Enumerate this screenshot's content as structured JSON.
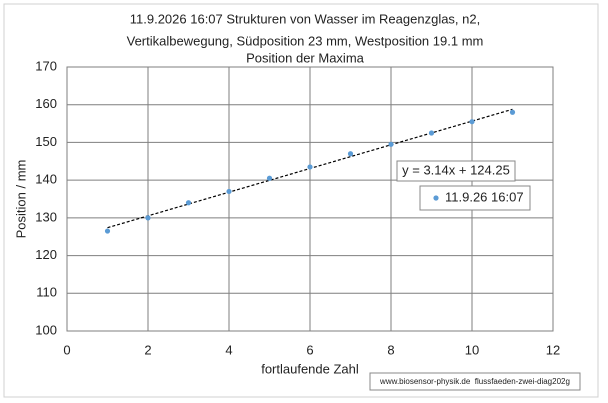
{
  "chart_data": {
    "type": "scatter",
    "title": [
      "11.9.2026 16:07  Strukturen von Wasser im Reagenzglas, n2,",
      "Vertikalbewegung, Südposition 23 mm, Westposition 19.1 mm",
      "Position der Maxima"
    ],
    "x_label": "fortlaufende Zahl",
    "y_label": "Position / mm",
    "x": [
      1,
      2,
      3,
      4,
      5,
      6,
      7,
      8,
      9,
      10,
      11
    ],
    "series": [
      {
        "name": "11.9.26 16:07",
        "color": "#5b9bd5",
        "values": [
          126.5,
          130,
          134,
          137,
          140.5,
          143.5,
          147,
          149.5,
          152.5,
          155.5,
          158
        ]
      }
    ],
    "trendline": {
      "label": "y = 3.14x + 124.25",
      "slope": 3.14,
      "intercept": 124.25
    },
    "xlim": [
      0,
      12
    ],
    "xticks": [
      0,
      2,
      4,
      6,
      8,
      10,
      12
    ],
    "ylim": [
      100,
      170
    ],
    "yticks": [
      100,
      110,
      120,
      130,
      140,
      150,
      160,
      170
    ],
    "grid": true,
    "footer": "www.biosensor-physik.de  flussfaeden-zwei-diag202g"
  }
}
